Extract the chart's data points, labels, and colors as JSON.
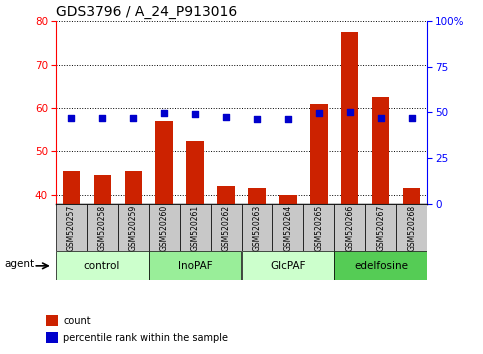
{
  "title": "GDS3796 / A_24_P913016",
  "samples": [
    "GSM520257",
    "GSM520258",
    "GSM520259",
    "GSM520260",
    "GSM520261",
    "GSM520262",
    "GSM520263",
    "GSM520264",
    "GSM520265",
    "GSM520266",
    "GSM520267",
    "GSM520268"
  ],
  "count_values": [
    45.5,
    44.5,
    45.5,
    57.0,
    52.5,
    42.0,
    41.5,
    40.0,
    61.0,
    77.5,
    62.5,
    41.5
  ],
  "percentile_right": [
    47.0,
    47.0,
    47.0,
    49.5,
    49.0,
    47.5,
    46.5,
    46.5,
    49.5,
    50.0,
    47.0,
    47.0
  ],
  "ylim_left": [
    38,
    80
  ],
  "ylim_right": [
    0,
    100
  ],
  "yticks_left": [
    40,
    50,
    60,
    70,
    80
  ],
  "yticks_right": [
    0,
    25,
    50,
    75,
    100
  ],
  "groups": [
    {
      "label": "control",
      "start": 0,
      "end": 3,
      "color": "#ccffcc"
    },
    {
      "label": "InoPAF",
      "start": 3,
      "end": 6,
      "color": "#99ee99"
    },
    {
      "label": "GlcPAF",
      "start": 6,
      "end": 9,
      "color": "#ccffcc"
    },
    {
      "label": "edelfosine",
      "start": 9,
      "end": 12,
      "color": "#55cc55"
    }
  ],
  "bar_color": "#cc2200",
  "dot_color": "#0000cc",
  "bar_width": 0.55,
  "agent_label": "agent",
  "legend_count": "count",
  "legend_pct": "percentile rank within the sample",
  "sample_bg": "#c8c8c8",
  "title_fontsize": 10,
  "tick_fontsize": 7.5,
  "sample_fontsize": 5.5,
  "group_fontsize": 7.5,
  "legend_fontsize": 7
}
